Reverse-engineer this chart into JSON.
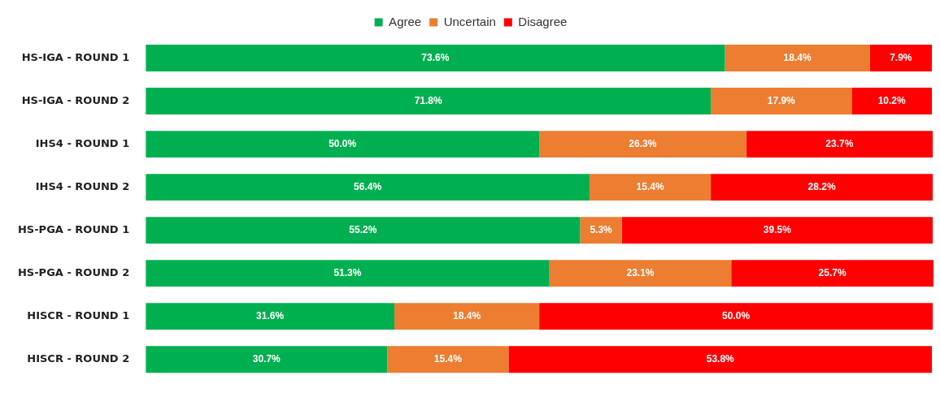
{
  "chart_data": {
    "type": "bar",
    "orientation": "horizontal",
    "stacked": true,
    "legend": "top",
    "categories": [
      "HS-IGA - ROUND 1",
      "HS-IGA - ROUND 2",
      "IHS4 - ROUND 1",
      "IHS4 - ROUND 2",
      "HS-PGA - ROUND 1",
      "HS-PGA - ROUND 2",
      "HISCR - ROUND 1",
      "HISCR - ROUND 2"
    ],
    "series": [
      {
        "name": "Agree",
        "color": "#00b050",
        "values": [
          73.6,
          71.8,
          50.0,
          56.4,
          55.2,
          51.3,
          31.6,
          30.7
        ],
        "value_labels": [
          "73.6%",
          "71.8%",
          "50.0%",
          "56.4%",
          "55.2%",
          "51.3%",
          "31.6%",
          "30.7%"
        ]
      },
      {
        "name": "Uncertain",
        "color": "#ed7d31",
        "values": [
          18.4,
          17.9,
          26.3,
          15.4,
          5.3,
          23.1,
          18.4,
          15.4
        ],
        "value_labels": [
          "18.4%",
          "17.9%",
          "26.3%",
          "15.4%",
          "5.3%",
          "23.1%",
          "18.4%",
          "15.4%"
        ]
      },
      {
        "name": "Disagree",
        "color": "#ff0000",
        "values": [
          7.9,
          10.2,
          23.7,
          28.2,
          39.5,
          25.7,
          50.0,
          53.8
        ],
        "value_labels": [
          "7.9%",
          "10.2%",
          "23.7%",
          "28.2%",
          "39.5%",
          "25.7%",
          "50.0%",
          "53.8%"
        ]
      }
    ]
  }
}
